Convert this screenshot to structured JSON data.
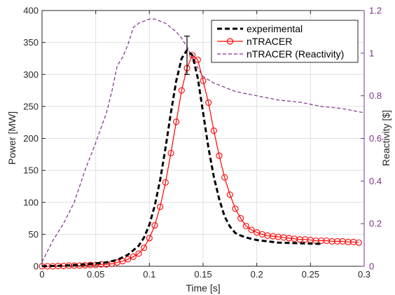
{
  "colors": {
    "experimental": "#000000",
    "ntracer": "#ff0000",
    "reactivity": "#7e2f8e",
    "axis": "#262626"
  },
  "chart_data": {
    "type": "line",
    "xlabel": "Time [s]",
    "ylabel": "Power [MW]",
    "y2label": "Reactivity [$]",
    "xlim": [
      0,
      0.3
    ],
    "ylim": [
      0,
      400
    ],
    "y2lim": [
      0,
      1.2
    ],
    "xticks": [
      "0",
      "0.05",
      "0.1",
      "0.15",
      "0.2",
      "0.25",
      "0.3"
    ],
    "yticks": [
      "0",
      "50",
      "100",
      "150",
      "200",
      "250",
      "300",
      "350",
      "400"
    ],
    "y2ticks": [
      "0",
      "0.2",
      "0.4",
      "0.6",
      "0.8",
      "1",
      "1.2"
    ],
    "grid": true,
    "legend_position": "top-right",
    "error_bar": {
      "x": 0.135,
      "y": 330,
      "low": 300,
      "high": 360
    },
    "series": [
      {
        "name": "experimental",
        "axis": "left",
        "style": "dashed",
        "marker": "none",
        "x": [
          0,
          0.02,
          0.04,
          0.06,
          0.07,
          0.08,
          0.09,
          0.095,
          0.1,
          0.105,
          0.11,
          0.115,
          0.12,
          0.125,
          0.13,
          0.135,
          0.14,
          0.145,
          0.15,
          0.155,
          0.16,
          0.165,
          0.17,
          0.175,
          0.18,
          0.185,
          0.19,
          0.2,
          0.21,
          0.22,
          0.24,
          0.26
        ],
        "y": [
          0,
          1,
          3,
          6,
          10,
          18,
          32,
          45,
          65,
          95,
          135,
          185,
          240,
          290,
          325,
          338,
          330,
          295,
          240,
          185,
          140,
          105,
          78,
          62,
          52,
          48,
          45,
          41,
          39,
          37,
          36,
          35
        ]
      },
      {
        "name": "nTRACER",
        "axis": "left",
        "style": "solid",
        "marker": "circle",
        "x": [
          0,
          0.005,
          0.01,
          0.015,
          0.02,
          0.025,
          0.03,
          0.035,
          0.04,
          0.045,
          0.05,
          0.055,
          0.06,
          0.065,
          0.07,
          0.075,
          0.08,
          0.085,
          0.09,
          0.095,
          0.1,
          0.105,
          0.11,
          0.115,
          0.12,
          0.125,
          0.13,
          0.135,
          0.14,
          0.145,
          0.15,
          0.155,
          0.16,
          0.165,
          0.17,
          0.175,
          0.18,
          0.185,
          0.19,
          0.195,
          0.2,
          0.205,
          0.21,
          0.215,
          0.22,
          0.225,
          0.23,
          0.235,
          0.24,
          0.245,
          0.25,
          0.255,
          0.26,
          0.265,
          0.27,
          0.275,
          0.28,
          0.285,
          0.29,
          0.295
        ],
        "y": [
          0,
          0,
          0,
          0.5,
          0.5,
          1,
          1,
          1,
          1.5,
          2,
          2,
          3,
          3,
          4,
          6,
          8,
          11,
          15,
          20,
          29,
          44,
          64,
          93,
          131,
          177,
          226,
          275,
          310,
          330,
          323,
          290,
          256,
          212,
          173,
          139,
          112,
          90,
          75,
          63,
          57,
          53,
          50,
          48,
          47,
          46,
          45,
          44,
          43,
          42,
          42,
          41,
          40,
          40,
          40,
          39,
          39,
          39,
          38,
          38,
          37
        ]
      },
      {
        "name": "nTRACER (Reactivity)",
        "axis": "right",
        "style": "dashed",
        "marker": "none",
        "x": [
          0,
          0.01,
          0.02,
          0.03,
          0.04,
          0.05,
          0.06,
          0.065,
          0.07,
          0.075,
          0.08,
          0.085,
          0.09,
          0.095,
          0.1,
          0.105,
          0.11,
          0.115,
          0.12,
          0.125,
          0.13,
          0.135,
          0.14,
          0.145,
          0.15,
          0.16,
          0.17,
          0.18,
          0.19,
          0.2,
          0.22,
          0.24,
          0.26,
          0.28,
          0.3
        ],
        "y": [
          0.02,
          0.12,
          0.2,
          0.3,
          0.45,
          0.58,
          0.72,
          0.82,
          0.94,
          0.98,
          1.04,
          1.12,
          1.14,
          1.15,
          1.16,
          1.16,
          1.15,
          1.14,
          1.12,
          1.1,
          1.07,
          1.03,
          0.98,
          0.93,
          0.89,
          0.86,
          0.84,
          0.82,
          0.81,
          0.8,
          0.78,
          0.77,
          0.75,
          0.74,
          0.72
        ]
      }
    ]
  }
}
